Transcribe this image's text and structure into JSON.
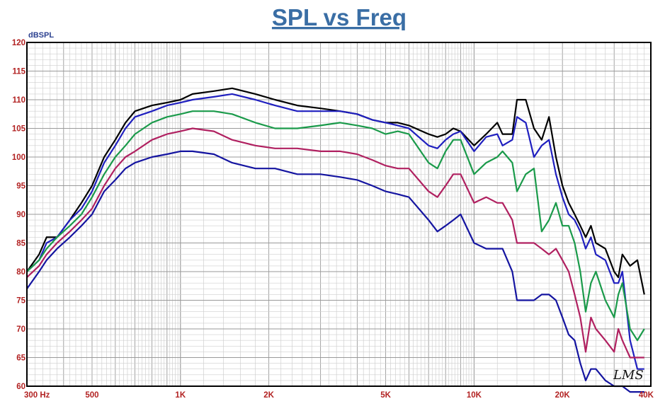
{
  "chart_data": {
    "type": "line",
    "title": "SPL vs Freq",
    "ylabel": "dBSPL",
    "xlabel": "",
    "x_scale": "log",
    "xlim": [
      300,
      40000
    ],
    "ylim": [
      60,
      120
    ],
    "grid": true,
    "x_ticks": [
      {
        "value": 300,
        "label": "300  Hz"
      },
      {
        "value": 500,
        "label": "500"
      },
      {
        "value": 1000,
        "label": "1K"
      },
      {
        "value": 2000,
        "label": "2K"
      },
      {
        "value": 5000,
        "label": "5K"
      },
      {
        "value": 10000,
        "label": "10K"
      },
      {
        "value": 20000,
        "label": "20K"
      },
      {
        "value": 40000,
        "label": "40K"
      }
    ],
    "y_ticks": [
      60,
      65,
      70,
      75,
      80,
      85,
      90,
      95,
      100,
      105,
      110,
      115,
      120
    ],
    "series": [
      {
        "color": "#000000",
        "points": [
          [
            300,
            80
          ],
          [
            330,
            83
          ],
          [
            350,
            86
          ],
          [
            380,
            86
          ],
          [
            420,
            89
          ],
          [
            460,
            92
          ],
          [
            500,
            95
          ],
          [
            550,
            100
          ],
          [
            600,
            103
          ],
          [
            650,
            106
          ],
          [
            700,
            108
          ],
          [
            800,
            109
          ],
          [
            900,
            109.5
          ],
          [
            1000,
            110
          ],
          [
            1100,
            111
          ],
          [
            1300,
            111.5
          ],
          [
            1500,
            112
          ],
          [
            1800,
            111
          ],
          [
            2100,
            110
          ],
          [
            2500,
            109
          ],
          [
            3000,
            108.5
          ],
          [
            3500,
            108
          ],
          [
            4000,
            107.5
          ],
          [
            4500,
            106.5
          ],
          [
            5000,
            106
          ],
          [
            5500,
            106
          ],
          [
            6000,
            105.5
          ],
          [
            7000,
            104
          ],
          [
            7500,
            103.5
          ],
          [
            8000,
            104
          ],
          [
            8500,
            105
          ],
          [
            9000,
            104.5
          ],
          [
            10000,
            102
          ],
          [
            11000,
            104
          ],
          [
            12000,
            106
          ],
          [
            12500,
            104
          ],
          [
            13500,
            104
          ],
          [
            14000,
            110
          ],
          [
            15000,
            110
          ],
          [
            16000,
            105
          ],
          [
            17000,
            103
          ],
          [
            18000,
            107
          ],
          [
            19000,
            100
          ],
          [
            20000,
            95
          ],
          [
            21000,
            92
          ],
          [
            22000,
            90
          ],
          [
            23000,
            88
          ],
          [
            24000,
            86
          ],
          [
            25000,
            88
          ],
          [
            26000,
            85
          ],
          [
            28000,
            84
          ],
          [
            30000,
            80
          ],
          [
            31000,
            79
          ],
          [
            32000,
            83
          ],
          [
            34000,
            81
          ],
          [
            36000,
            82
          ],
          [
            38000,
            76
          ]
        ]
      },
      {
        "color": "#1f1fbf",
        "points": [
          [
            300,
            80
          ],
          [
            330,
            82
          ],
          [
            350,
            85
          ],
          [
            380,
            86
          ],
          [
            420,
            89
          ],
          [
            460,
            91
          ],
          [
            500,
            94
          ],
          [
            550,
            99
          ],
          [
            600,
            102
          ],
          [
            650,
            105
          ],
          [
            700,
            107
          ],
          [
            800,
            108
          ],
          [
            900,
            109
          ],
          [
            1000,
            109.5
          ],
          [
            1100,
            110
          ],
          [
            1300,
            110.5
          ],
          [
            1500,
            111
          ],
          [
            1800,
            110
          ],
          [
            2100,
            109
          ],
          [
            2500,
            108
          ],
          [
            3000,
            108
          ],
          [
            3500,
            108
          ],
          [
            4000,
            107.5
          ],
          [
            4500,
            106.5
          ],
          [
            5000,
            106
          ],
          [
            5500,
            105.5
          ],
          [
            6000,
            105
          ],
          [
            7000,
            102
          ],
          [
            7500,
            101.5
          ],
          [
            8000,
            103
          ],
          [
            8500,
            104
          ],
          [
            9000,
            104.5
          ],
          [
            10000,
            101
          ],
          [
            11000,
            103.5
          ],
          [
            12000,
            104
          ],
          [
            12500,
            102
          ],
          [
            13500,
            103
          ],
          [
            14000,
            107
          ],
          [
            15000,
            106
          ],
          [
            16000,
            100
          ],
          [
            17000,
            102
          ],
          [
            18000,
            103
          ],
          [
            19000,
            97
          ],
          [
            20000,
            93
          ],
          [
            21000,
            90
          ],
          [
            22000,
            89
          ],
          [
            23000,
            87
          ],
          [
            24000,
            84
          ],
          [
            25000,
            86
          ],
          [
            26000,
            83
          ],
          [
            28000,
            82
          ],
          [
            30000,
            78
          ],
          [
            31000,
            78
          ],
          [
            32000,
            80
          ],
          [
            34000,
            68
          ],
          [
            36000,
            63
          ],
          [
            38000,
            63
          ]
        ]
      },
      {
        "color": "#1a9a4a",
        "points": [
          [
            300,
            80
          ],
          [
            330,
            82
          ],
          [
            350,
            84
          ],
          [
            380,
            86
          ],
          [
            420,
            88
          ],
          [
            460,
            90
          ],
          [
            500,
            93
          ],
          [
            550,
            97
          ],
          [
            600,
            100
          ],
          [
            650,
            102
          ],
          [
            700,
            104
          ],
          [
            800,
            106
          ],
          [
            900,
            107
          ],
          [
            1000,
            107.5
          ],
          [
            1100,
            108
          ],
          [
            1300,
            108
          ],
          [
            1500,
            107.5
          ],
          [
            1800,
            106
          ],
          [
            2100,
            105
          ],
          [
            2500,
            105
          ],
          [
            3000,
            105.5
          ],
          [
            3500,
            106
          ],
          [
            4000,
            105.5
          ],
          [
            4500,
            105
          ],
          [
            5000,
            104
          ],
          [
            5500,
            104.5
          ],
          [
            6000,
            104
          ],
          [
            7000,
            99
          ],
          [
            7500,
            98
          ],
          [
            8000,
            101
          ],
          [
            8500,
            103
          ],
          [
            9000,
            103
          ],
          [
            10000,
            97
          ],
          [
            11000,
            99
          ],
          [
            12000,
            100
          ],
          [
            12500,
            101
          ],
          [
            13500,
            99
          ],
          [
            14000,
            94
          ],
          [
            15000,
            97
          ],
          [
            16000,
            98
          ],
          [
            17000,
            87
          ],
          [
            18000,
            89
          ],
          [
            19000,
            92
          ],
          [
            20000,
            88
          ],
          [
            21000,
            88
          ],
          [
            22000,
            85
          ],
          [
            23000,
            80
          ],
          [
            24000,
            73
          ],
          [
            25000,
            78
          ],
          [
            26000,
            80
          ],
          [
            28000,
            75
          ],
          [
            30000,
            72
          ],
          [
            31000,
            76
          ],
          [
            32000,
            78
          ],
          [
            34000,
            70
          ],
          [
            36000,
            68
          ],
          [
            38000,
            70
          ]
        ]
      },
      {
        "color": "#b02060",
        "points": [
          [
            300,
            79
          ],
          [
            330,
            81
          ],
          [
            350,
            83
          ],
          [
            380,
            85
          ],
          [
            420,
            87
          ],
          [
            460,
            89
          ],
          [
            500,
            91
          ],
          [
            550,
            95
          ],
          [
            600,
            98
          ],
          [
            650,
            100
          ],
          [
            700,
            101
          ],
          [
            800,
            103
          ],
          [
            900,
            104
          ],
          [
            1000,
            104.5
          ],
          [
            1100,
            105
          ],
          [
            1300,
            104.5
          ],
          [
            1500,
            103
          ],
          [
            1800,
            102
          ],
          [
            2100,
            101.5
          ],
          [
            2500,
            101.5
          ],
          [
            3000,
            101
          ],
          [
            3500,
            101
          ],
          [
            4000,
            100.5
          ],
          [
            4500,
            99.5
          ],
          [
            5000,
            98.5
          ],
          [
            5500,
            98
          ],
          [
            6000,
            98
          ],
          [
            7000,
            94
          ],
          [
            7500,
            93
          ],
          [
            8000,
            95
          ],
          [
            8500,
            97
          ],
          [
            9000,
            97
          ],
          [
            10000,
            92
          ],
          [
            11000,
            93
          ],
          [
            12000,
            92
          ],
          [
            12500,
            92
          ],
          [
            13500,
            89
          ],
          [
            14000,
            85
          ],
          [
            15000,
            85
          ],
          [
            16000,
            85
          ],
          [
            17000,
            84
          ],
          [
            18000,
            83
          ],
          [
            19000,
            84
          ],
          [
            20000,
            82
          ],
          [
            21000,
            80
          ],
          [
            22000,
            76
          ],
          [
            23000,
            72
          ],
          [
            24000,
            66
          ],
          [
            25000,
            72
          ],
          [
            26000,
            70
          ],
          [
            28000,
            68
          ],
          [
            30000,
            66
          ],
          [
            31000,
            70
          ],
          [
            32000,
            68
          ],
          [
            34000,
            65
          ],
          [
            36000,
            65
          ],
          [
            38000,
            65
          ]
        ]
      },
      {
        "color": "#1414a0",
        "points": [
          [
            300,
            77
          ],
          [
            330,
            80
          ],
          [
            350,
            82
          ],
          [
            380,
            84
          ],
          [
            420,
            86
          ],
          [
            460,
            88
          ],
          [
            500,
            90
          ],
          [
            550,
            94
          ],
          [
            600,
            96
          ],
          [
            650,
            98
          ],
          [
            700,
            99
          ],
          [
            800,
            100
          ],
          [
            900,
            100.5
          ],
          [
            1000,
            101
          ],
          [
            1100,
            101
          ],
          [
            1300,
            100.5
          ],
          [
            1500,
            99
          ],
          [
            1800,
            98
          ],
          [
            2100,
            98
          ],
          [
            2500,
            97
          ],
          [
            3000,
            97
          ],
          [
            3500,
            96.5
          ],
          [
            4000,
            96
          ],
          [
            4500,
            95
          ],
          [
            5000,
            94
          ],
          [
            5500,
            93.5
          ],
          [
            6000,
            93
          ],
          [
            7000,
            89
          ],
          [
            7500,
            87
          ],
          [
            8000,
            88
          ],
          [
            8500,
            89
          ],
          [
            9000,
            90
          ],
          [
            10000,
            85
          ],
          [
            11000,
            84
          ],
          [
            12000,
            84
          ],
          [
            12500,
            84
          ],
          [
            13500,
            80
          ],
          [
            14000,
            75
          ],
          [
            15000,
            75
          ],
          [
            16000,
            75
          ],
          [
            17000,
            76
          ],
          [
            18000,
            76
          ],
          [
            19000,
            75
          ],
          [
            20000,
            72
          ],
          [
            21000,
            69
          ],
          [
            22000,
            68
          ],
          [
            23000,
            64
          ],
          [
            24000,
            61
          ],
          [
            25000,
            63
          ],
          [
            26000,
            63
          ],
          [
            28000,
            61
          ],
          [
            30000,
            60
          ],
          [
            31000,
            60
          ],
          [
            32000,
            60
          ],
          [
            34000,
            59
          ],
          [
            36000,
            59
          ],
          [
            38000,
            59
          ]
        ]
      }
    ],
    "annotations": [
      "LMS"
    ]
  }
}
